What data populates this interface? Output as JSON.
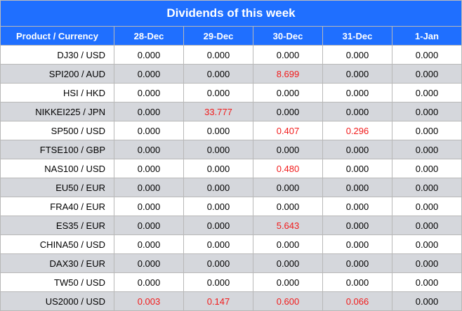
{
  "title": "Dividends of this week",
  "header": [
    "Product / Currency",
    "28-Dec",
    "29-Dec",
    "30-Dec",
    "31-Dec",
    "1-Jan"
  ],
  "colors": {
    "header_bg": "#1f6fff",
    "header_text": "#ffffff",
    "alt_row_bg": "#d5d7dc",
    "nonzero_value": "#f21b1b"
  },
  "rows": [
    {
      "product": "DJ30 / USD",
      "values": [
        "0.000",
        "0.000",
        "0.000",
        "0.000",
        "0.000"
      ]
    },
    {
      "product": "SPI200 / AUD",
      "values": [
        "0.000",
        "0.000",
        "8.699",
        "0.000",
        "0.000"
      ]
    },
    {
      "product": "HSI / HKD",
      "values": [
        "0.000",
        "0.000",
        "0.000",
        "0.000",
        "0.000"
      ]
    },
    {
      "product": "NIKKEI225 / JPN",
      "values": [
        "0.000",
        "33.777",
        "0.000",
        "0.000",
        "0.000"
      ]
    },
    {
      "product": "SP500 / USD",
      "values": [
        "0.000",
        "0.000",
        "0.407",
        "0.296",
        "0.000"
      ]
    },
    {
      "product": "FTSE100 / GBP",
      "values": [
        "0.000",
        "0.000",
        "0.000",
        "0.000",
        "0.000"
      ]
    },
    {
      "product": "NAS100 / USD",
      "values": [
        "0.000",
        "0.000",
        "0.480",
        "0.000",
        "0.000"
      ]
    },
    {
      "product": "EU50 / EUR",
      "values": [
        "0.000",
        "0.000",
        "0.000",
        "0.000",
        "0.000"
      ]
    },
    {
      "product": "FRA40 / EUR",
      "values": [
        "0.000",
        "0.000",
        "0.000",
        "0.000",
        "0.000"
      ]
    },
    {
      "product": "ES35 / EUR",
      "values": [
        "0.000",
        "0.000",
        "5.643",
        "0.000",
        "0.000"
      ]
    },
    {
      "product": "CHINA50 / USD",
      "values": [
        "0.000",
        "0.000",
        "0.000",
        "0.000",
        "0.000"
      ]
    },
    {
      "product": "DAX30 / EUR",
      "values": [
        "0.000",
        "0.000",
        "0.000",
        "0.000",
        "0.000"
      ]
    },
    {
      "product": "TW50 / USD",
      "values": [
        "0.000",
        "0.000",
        "0.000",
        "0.000",
        "0.000"
      ]
    },
    {
      "product": "US2000 / USD",
      "values": [
        "0.003",
        "0.147",
        "0.600",
        "0.066",
        "0.000"
      ]
    }
  ]
}
